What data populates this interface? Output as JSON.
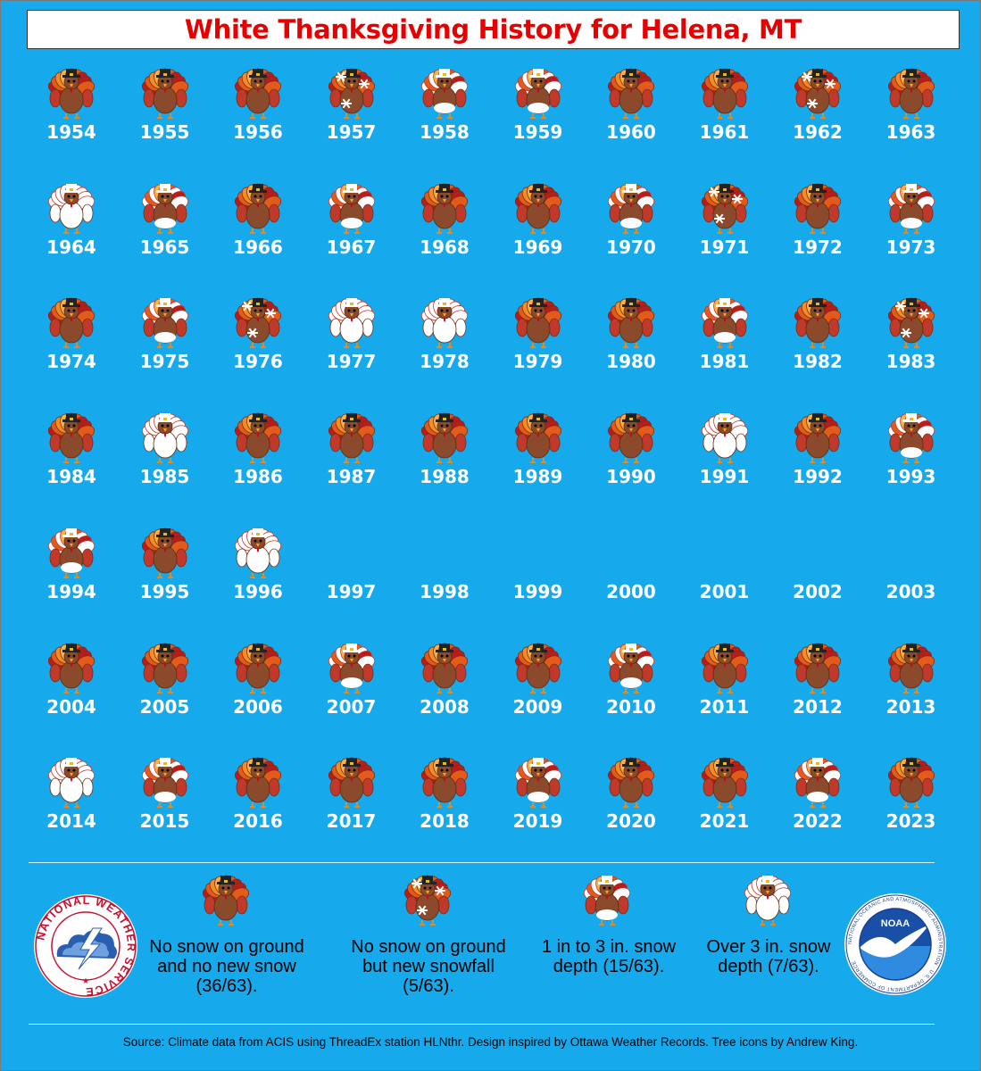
{
  "title": "White Thanksgiving History for Helena, MT",
  "rows": [
    [
      {
        "y": "1954",
        "c": "none"
      },
      {
        "y": "1955",
        "c": "none"
      },
      {
        "y": "1956",
        "c": "none"
      },
      {
        "y": "1957",
        "c": "snowfall"
      },
      {
        "y": "1958",
        "c": "snow1to3"
      },
      {
        "y": "1959",
        "c": "snow1to3"
      },
      {
        "y": "1960",
        "c": "none"
      },
      {
        "y": "1961",
        "c": "none"
      },
      {
        "y": "1962",
        "c": "snowfall"
      },
      {
        "y": "1963",
        "c": "none"
      }
    ],
    [
      {
        "y": "1964",
        "c": "snowover3"
      },
      {
        "y": "1965",
        "c": "snow1to3"
      },
      {
        "y": "1966",
        "c": "none"
      },
      {
        "y": "1967",
        "c": "snow1to3"
      },
      {
        "y": "1968",
        "c": "none"
      },
      {
        "y": "1969",
        "c": "none"
      },
      {
        "y": "1970",
        "c": "snow1to3"
      },
      {
        "y": "1971",
        "c": "snowfall"
      },
      {
        "y": "1972",
        "c": "none"
      },
      {
        "y": "1973",
        "c": "snow1to3"
      }
    ],
    [
      {
        "y": "1974",
        "c": "none"
      },
      {
        "y": "1975",
        "c": "snow1to3"
      },
      {
        "y": "1976",
        "c": "snowfall"
      },
      {
        "y": "1977",
        "c": "snowover3"
      },
      {
        "y": "1978",
        "c": "snowover3"
      },
      {
        "y": "1979",
        "c": "none"
      },
      {
        "y": "1980",
        "c": "none"
      },
      {
        "y": "1981",
        "c": "snow1to3"
      },
      {
        "y": "1982",
        "c": "none"
      },
      {
        "y": "1983",
        "c": "snowfall"
      }
    ],
    [
      {
        "y": "1984",
        "c": "none"
      },
      {
        "y": "1985",
        "c": "snowover3"
      },
      {
        "y": "1986",
        "c": "none"
      },
      {
        "y": "1987",
        "c": "none"
      },
      {
        "y": "1988",
        "c": "none"
      },
      {
        "y": "1989",
        "c": "none"
      },
      {
        "y": "1990",
        "c": "none"
      },
      {
        "y": "1991",
        "c": "snowover3"
      },
      {
        "y": "1992",
        "c": "none"
      },
      {
        "y": "1993",
        "c": "snow1to3"
      }
    ],
    [
      {
        "y": "1994",
        "c": "snow1to3"
      },
      {
        "y": "1995",
        "c": "none"
      },
      {
        "y": "1996",
        "c": "snowover3"
      },
      {
        "y": "1997",
        "c": "missing"
      },
      {
        "y": "1998",
        "c": "missing"
      },
      {
        "y": "1999",
        "c": "missing"
      },
      {
        "y": "2000",
        "c": "missing"
      },
      {
        "y": "2001",
        "c": "missing"
      },
      {
        "y": "2002",
        "c": "missing"
      },
      {
        "y": "2003",
        "c": "missing"
      }
    ],
    [
      {
        "y": "2004",
        "c": "none"
      },
      {
        "y": "2005",
        "c": "none"
      },
      {
        "y": "2006",
        "c": "none"
      },
      {
        "y": "2007",
        "c": "snow1to3"
      },
      {
        "y": "2008",
        "c": "none"
      },
      {
        "y": "2009",
        "c": "none"
      },
      {
        "y": "2010",
        "c": "snow1to3"
      },
      {
        "y": "2011",
        "c": "none"
      },
      {
        "y": "2012",
        "c": "none"
      },
      {
        "y": "2013",
        "c": "none"
      }
    ],
    [
      {
        "y": "2014",
        "c": "snowover3"
      },
      {
        "y": "2015",
        "c": "snow1to3"
      },
      {
        "y": "2016",
        "c": "none"
      },
      {
        "y": "2017",
        "c": "none"
      },
      {
        "y": "2018",
        "c": "none"
      },
      {
        "y": "2019",
        "c": "snow1to3"
      },
      {
        "y": "2020",
        "c": "none"
      },
      {
        "y": "2021",
        "c": "none"
      },
      {
        "y": "2022",
        "c": "snow1to3"
      },
      {
        "y": "2023",
        "c": "none"
      }
    ]
  ],
  "legend": {
    "none": "No snow on ground and no new snow (36/63).",
    "snowfall": "No snow on ground but new snowfall (5/63).",
    "snow1to3": "1 in to 3 in. snow depth (15/63).",
    "snowover3": "Over 3 in. snow depth (7/63)."
  },
  "logos": {
    "nws": "NATIONAL WEATHER SERVICE",
    "noaa": "NOAA",
    "noaa_ring": "NATIONAL OCEANIC AND ATMOSPHERIC ADMINISTRATION · U.S. DEPARTMENT OF COMMERCE"
  },
  "source": "Source: Climate data from ACIS using ThreadEx station HLNthr. Design inspired by Ottawa Weather Records. Tree icons by Andrew King.",
  "colors": {
    "background": "#16A9EB",
    "title": "#E60000",
    "year_text": "#FFFFFF"
  }
}
